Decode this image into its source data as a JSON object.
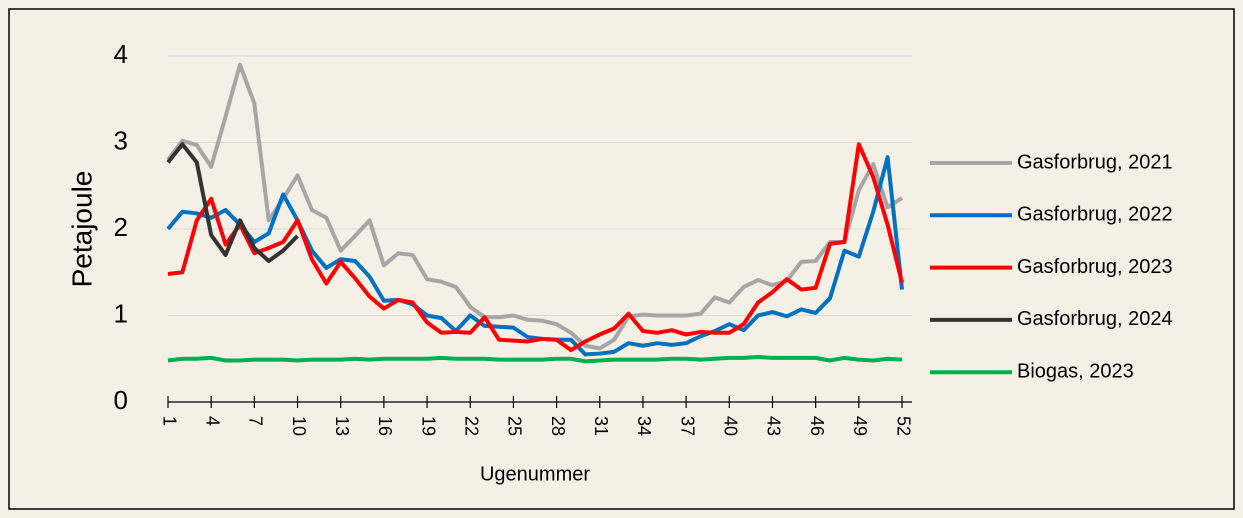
{
  "chart_data": {
    "type": "line",
    "y_label": "Petajoule",
    "x_label": "Ugenummer",
    "x": [
      1,
      2,
      3,
      4,
      5,
      6,
      7,
      8,
      9,
      10,
      11,
      12,
      13,
      14,
      15,
      16,
      17,
      18,
      19,
      20,
      21,
      22,
      23,
      24,
      25,
      26,
      27,
      28,
      29,
      30,
      31,
      32,
      33,
      34,
      35,
      36,
      37,
      38,
      39,
      40,
      41,
      42,
      43,
      44,
      45,
      46,
      47,
      48,
      49,
      50,
      51,
      52
    ],
    "xlim": [
      1,
      52
    ],
    "xticks": [
      1,
      4,
      7,
      10,
      13,
      16,
      19,
      22,
      25,
      28,
      31,
      34,
      37,
      40,
      43,
      46,
      49,
      52
    ],
    "ylim": [
      0,
      4
    ],
    "yticks": [
      0,
      1,
      2,
      3,
      4
    ],
    "grid": true,
    "legend": "right",
    "series": [
      {
        "name": "Gasforbrug, 2021",
        "color": "#a6a6a6",
        "values": [
          2.8,
          3.02,
          2.97,
          2.72,
          3.3,
          3.9,
          3.45,
          2.1,
          2.35,
          2.62,
          2.22,
          2.13,
          1.75,
          1.92,
          2.1,
          1.58,
          1.72,
          1.7,
          1.42,
          1.39,
          1.33,
          1.1,
          0.98,
          0.98,
          1.0,
          0.95,
          0.94,
          0.9,
          0.8,
          0.65,
          0.62,
          0.72,
          0.99,
          1.01,
          1.0,
          1.0,
          1.0,
          1.02,
          1.21,
          1.15,
          1.33,
          1.41,
          1.35,
          1.4,
          1.62,
          1.63,
          1.85,
          1.85,
          2.45,
          2.75,
          2.25,
          2.36
        ]
      },
      {
        "name": "Gasforbrug, 2022",
        "color": "#0070c0",
        "values": [
          2.0,
          2.2,
          2.18,
          2.13,
          2.22,
          2.05,
          1.85,
          1.95,
          2.4,
          2.1,
          1.75,
          1.55,
          1.65,
          1.63,
          1.45,
          1.17,
          1.18,
          1.13,
          1.0,
          0.97,
          0.82,
          1.0,
          0.88,
          0.87,
          0.86,
          0.75,
          0.73,
          0.72,
          0.72,
          0.55,
          0.56,
          0.58,
          0.68,
          0.65,
          0.68,
          0.66,
          0.68,
          0.76,
          0.82,
          0.9,
          0.83,
          1.0,
          1.04,
          0.99,
          1.07,
          1.03,
          1.2,
          1.75,
          1.68,
          2.2,
          2.83,
          1.3
        ]
      },
      {
        "name": "Gasforbrug, 2023",
        "color": "#ff0000",
        "values": [
          1.48,
          1.5,
          2.1,
          2.35,
          1.82,
          2.05,
          1.72,
          1.78,
          1.85,
          2.1,
          1.65,
          1.37,
          1.62,
          1.43,
          1.22,
          1.08,
          1.18,
          1.15,
          0.92,
          0.8,
          0.81,
          0.8,
          0.98,
          0.72,
          0.71,
          0.7,
          0.73,
          0.72,
          0.6,
          0.7,
          0.78,
          0.85,
          1.02,
          0.82,
          0.8,
          0.83,
          0.78,
          0.81,
          0.8,
          0.8,
          0.9,
          1.15,
          1.27,
          1.42,
          1.3,
          1.32,
          1.83,
          1.85,
          2.98,
          2.6,
          2.05,
          1.38
        ]
      },
      {
        "name": "Gasforbrug, 2024",
        "color": "#333333",
        "values": [
          2.77,
          2.98,
          2.77,
          1.93,
          1.7,
          2.1,
          1.78,
          1.63,
          1.75,
          1.92,
          null,
          null,
          null,
          null,
          null,
          null,
          null,
          null,
          null,
          null,
          null,
          null,
          null,
          null,
          null,
          null,
          null,
          null,
          null,
          null,
          null,
          null,
          null,
          null,
          null,
          null,
          null,
          null,
          null,
          null,
          null,
          null,
          null,
          null,
          null,
          null,
          null,
          null,
          null,
          null,
          null,
          null
        ]
      },
      {
        "name": "Biogas, 2023",
        "color": "#00b050",
        "values": [
          0.48,
          0.5,
          0.5,
          0.51,
          0.48,
          0.48,
          0.49,
          0.49,
          0.49,
          0.48,
          0.49,
          0.49,
          0.49,
          0.5,
          0.49,
          0.5,
          0.5,
          0.5,
          0.5,
          0.51,
          0.5,
          0.5,
          0.5,
          0.49,
          0.49,
          0.49,
          0.49,
          0.5,
          0.5,
          0.47,
          0.48,
          0.49,
          0.49,
          0.49,
          0.49,
          0.5,
          0.5,
          0.49,
          0.5,
          0.51,
          0.51,
          0.52,
          0.51,
          0.51,
          0.51,
          0.51,
          0.48,
          0.51,
          0.49,
          0.48,
          0.5,
          0.49
        ]
      }
    ]
  }
}
